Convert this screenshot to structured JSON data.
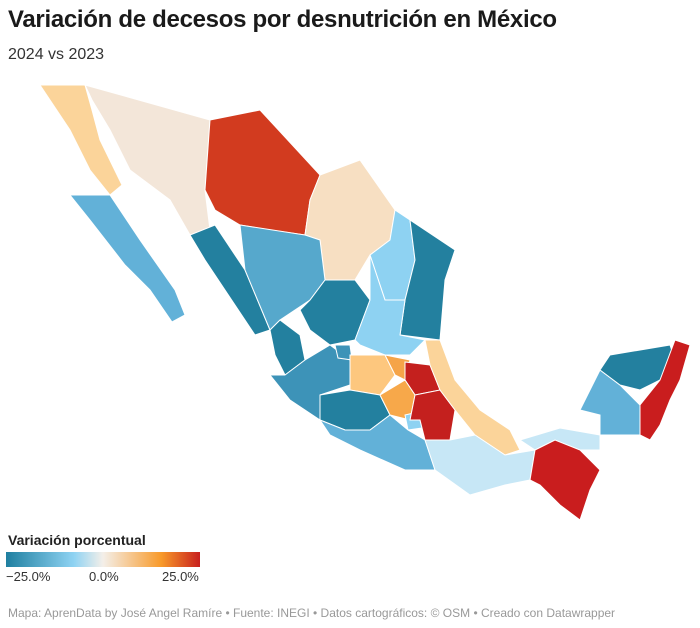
{
  "header": {
    "title": "Variación de decesos por desnutrición en México",
    "subtitle": "2024 vs 2023"
  },
  "legend": {
    "title": "Variación porcentual",
    "ticks": [
      "−25.0%",
      "0.0%",
      "25.0%"
    ],
    "min": -25,
    "max": 25,
    "colors": [
      "#1f7fa0",
      "#8fd3f3",
      "#f4efe9",
      "#f89a2a",
      "#c8201e"
    ]
  },
  "footer": "Mapa: AprenData by José Angel Ramíre • Fuente: INEGI • Datos cartográficos: © OSM  • Creado con Datawrapper"
}
